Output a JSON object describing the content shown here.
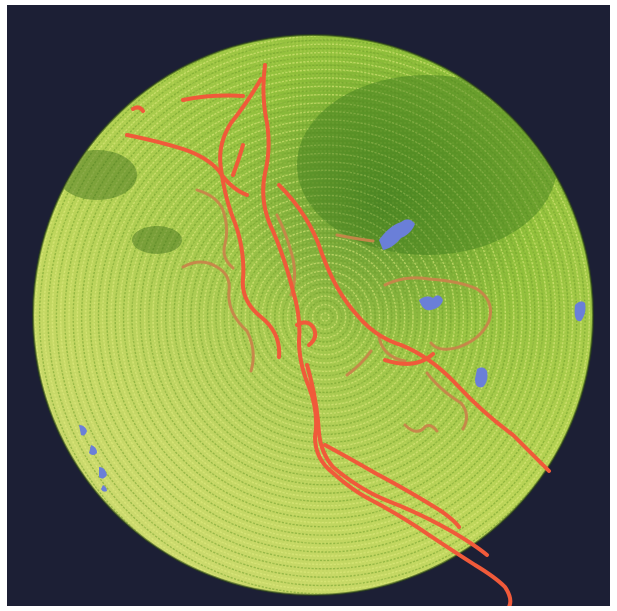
{
  "image": {
    "subject": "embroidered-circular-map",
    "colors": {
      "background": "#1c1f35",
      "disc_light": "#c5d85a",
      "disc_mid": "#8fbf3a",
      "disc_dark": "#4c8a22",
      "road_major": "#f05a3a",
      "road_minor": "#c8864a",
      "water": "#6a7fd8"
    }
  }
}
